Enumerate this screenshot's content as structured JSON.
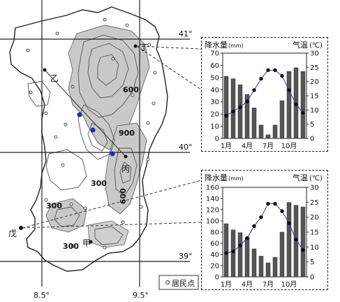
{
  "map": {
    "lat_labels": [
      "41°",
      "40°",
      "39°"
    ],
    "lon_labels": [
      "8.5°",
      "9.5°"
    ],
    "contour_labels": [
      "600",
      "900",
      "300",
      "300",
      "600",
      "300"
    ],
    "point_labels": [
      "丁",
      "乙",
      "丙",
      "戊",
      "甲"
    ],
    "legend_label": "居民点",
    "colors": {
      "land": "#ffffff",
      "contour": "#555555",
      "grid": "#222222",
      "shade": "#c8c8c8",
      "profile_point": "#1a2fb0"
    }
  },
  "charts": [
    {
      "id": "top",
      "left_label": "降水量",
      "left_unit": "(mm)",
      "right_label": "气温",
      "right_unit": "(℃)",
      "left_ticks": [
        "0",
        "10",
        "20",
        "30",
        "40",
        "50",
        "60",
        "70"
      ],
      "right_ticks": [
        "0",
        "5",
        "10",
        "15",
        "20",
        "25",
        "30"
      ],
      "x_labels": [
        "1月",
        "4月",
        "7月",
        "10月"
      ]
    },
    {
      "id": "bottom",
      "left_label": "降水量",
      "left_unit": "(mm)",
      "right_label": "气温",
      "right_unit": "(℃)",
      "left_ticks": [
        "0",
        "20",
        "40",
        "60",
        "80",
        "100",
        "120",
        "140",
        "160"
      ],
      "right_ticks": [
        "0",
        "5",
        "10",
        "15",
        "20",
        "25",
        "30"
      ],
      "x_labels": [
        "1月",
        "4月",
        "7月",
        "10月"
      ]
    }
  ],
  "chart_data": [
    {
      "type": "bar",
      "categories": [
        "1",
        "2",
        "3",
        "4",
        "5",
        "6",
        "7",
        "8",
        "9",
        "10",
        "11",
        "12"
      ],
      "x_tick_labels": [
        "1月",
        "4月",
        "7月",
        "10月"
      ],
      "ylabel": "降水量(mm)",
      "y2label": "气温(℃)",
      "ylim": [
        0,
        70
      ],
      "y2lim": [
        0,
        30
      ],
      "series": [
        {
          "name": "降水量",
          "type": "bar",
          "values": [
            51,
            49,
            44,
            36,
            25,
            11,
            3,
            11,
            31,
            55,
            58,
            55
          ]
        },
        {
          "name": "气温",
          "type": "line",
          "axis": "right",
          "values": [
            8,
            9.5,
            11,
            13,
            17,
            21,
            24,
            24,
            22,
            17,
            12,
            9
          ]
        }
      ]
    },
    {
      "type": "bar",
      "categories": [
        "1",
        "2",
        "3",
        "4",
        "5",
        "6",
        "7",
        "8",
        "9",
        "10",
        "11",
        "12"
      ],
      "x_tick_labels": [
        "1月",
        "4月",
        "7月",
        "10月"
      ],
      "ylabel": "降水量(mm)",
      "y2label": "气温(℃)",
      "ylim": [
        0,
        160
      ],
      "y2lim": [
        0,
        30
      ],
      "series": [
        {
          "name": "降水量",
          "type": "bar",
          "values": [
            95,
            84,
            79,
            70,
            50,
            37,
            25,
            35,
            80,
            133,
            128,
            125
          ]
        },
        {
          "name": "气温",
          "type": "line",
          "axis": "right",
          "values": [
            8,
            8.5,
            10.5,
            13,
            17,
            20,
            24.5,
            24.5,
            22,
            18,
            12.5,
            9
          ]
        }
      ]
    }
  ]
}
